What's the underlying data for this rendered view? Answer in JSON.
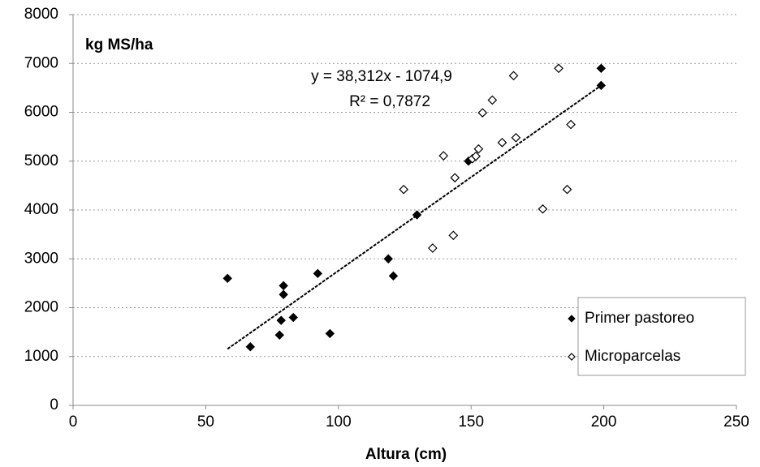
{
  "chart_data": {
    "type": "scatter",
    "xlabel": "Altura (cm)",
    "ylabel": "kg MS/ha",
    "xlim": [
      0,
      250
    ],
    "xticks": [
      0,
      50,
      100,
      150,
      200,
      250
    ],
    "ylim": [
      0,
      8000
    ],
    "yticks": [
      0,
      1000,
      2000,
      3000,
      4000,
      5000,
      6000,
      7000,
      8000
    ],
    "grid": true,
    "legend": "lower right",
    "series": [
      {
        "name": "Primer pastoreo",
        "color": "#000000",
        "marker": "filled-diamond",
        "x": [
          58.2,
          66.8,
          77.8,
          78.4,
          79.3,
          79.3,
          83,
          92.2,
          96.8,
          118.8,
          120.7,
          129.6,
          149,
          199,
          199
        ],
        "values": [
          2600,
          1200,
          1440,
          1740,
          2270,
          2450,
          1800,
          2700,
          1470,
          3000,
          2650,
          3900,
          5000,
          6900,
          6550
        ]
      },
      {
        "name": "Microparcelas",
        "color": "#000000",
        "marker": "open-diamond",
        "x": [
          183,
          166,
          158,
          154.3,
          139.6,
          150.5,
          151.8,
          152.8,
          161.7,
          166.9,
          187.6,
          143.9,
          124.6,
          177,
          186.2,
          143.3,
          135.5
        ],
        "values": [
          6900,
          6750,
          6250,
          5990,
          5110,
          5050,
          5100,
          5250,
          5380,
          5480,
          5750,
          4660,
          4420,
          4020,
          4420,
          3480,
          3220
        ]
      }
    ],
    "trendline": {
      "label": "y = 38,312x  - 1074,9",
      "r2_label": "R² = 0,7872",
      "x": [
        58.2,
        199
      ],
      "y": [
        1155,
        6549
      ]
    }
  }
}
